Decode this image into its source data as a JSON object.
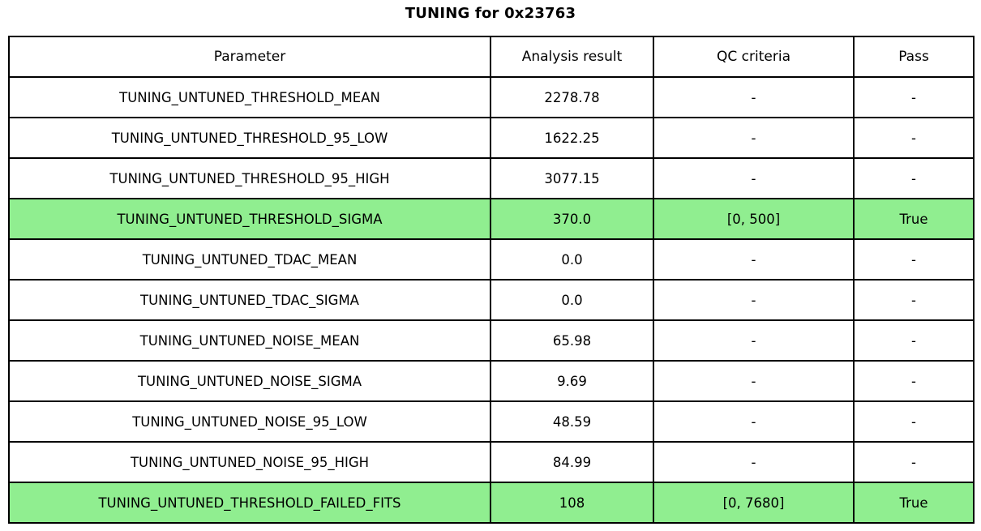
{
  "title": "TUNING for 0x23763",
  "chart_data": {
    "type": "table",
    "title": "TUNING for 0x23763",
    "columns": [
      "Parameter",
      "Analysis result",
      "QC criteria",
      "Pass"
    ],
    "rows": [
      [
        "TUNING_UNTUNED_THRESHOLD_MEAN",
        "2278.78",
        "-",
        "-"
      ],
      [
        "TUNING_UNTUNED_THRESHOLD_95_LOW",
        "1622.25",
        "-",
        "-"
      ],
      [
        "TUNING_UNTUNED_THRESHOLD_95_HIGH",
        "3077.15",
        "-",
        "-"
      ],
      [
        "TUNING_UNTUNED_THRESHOLD_SIGMA",
        "370.0",
        "[0, 500]",
        "True"
      ],
      [
        "TUNING_UNTUNED_TDAC_MEAN",
        "0.0",
        "-",
        "-"
      ],
      [
        "TUNING_UNTUNED_TDAC_SIGMA",
        "0.0",
        "-",
        "-"
      ],
      [
        "TUNING_UNTUNED_NOISE_MEAN",
        "65.98",
        "-",
        "-"
      ],
      [
        "TUNING_UNTUNED_NOISE_SIGMA",
        "9.69",
        "-",
        "-"
      ],
      [
        "TUNING_UNTUNED_NOISE_95_LOW",
        "48.59",
        "-",
        "-"
      ],
      [
        "TUNING_UNTUNED_NOISE_95_HIGH",
        "84.99",
        "-",
        "-"
      ],
      [
        "TUNING_UNTUNED_THRESHOLD_FAILED_FITS",
        "108",
        "[0, 7680]",
        "True"
      ]
    ],
    "highlight_rows": [
      3,
      10
    ],
    "layout": {
      "grid": true,
      "header_row": true,
      "text_align": "center"
    }
  },
  "colors": {
    "highlight": "#90EE90",
    "border": "#000000",
    "text": "#000000",
    "background": "#FFFFFF"
  }
}
